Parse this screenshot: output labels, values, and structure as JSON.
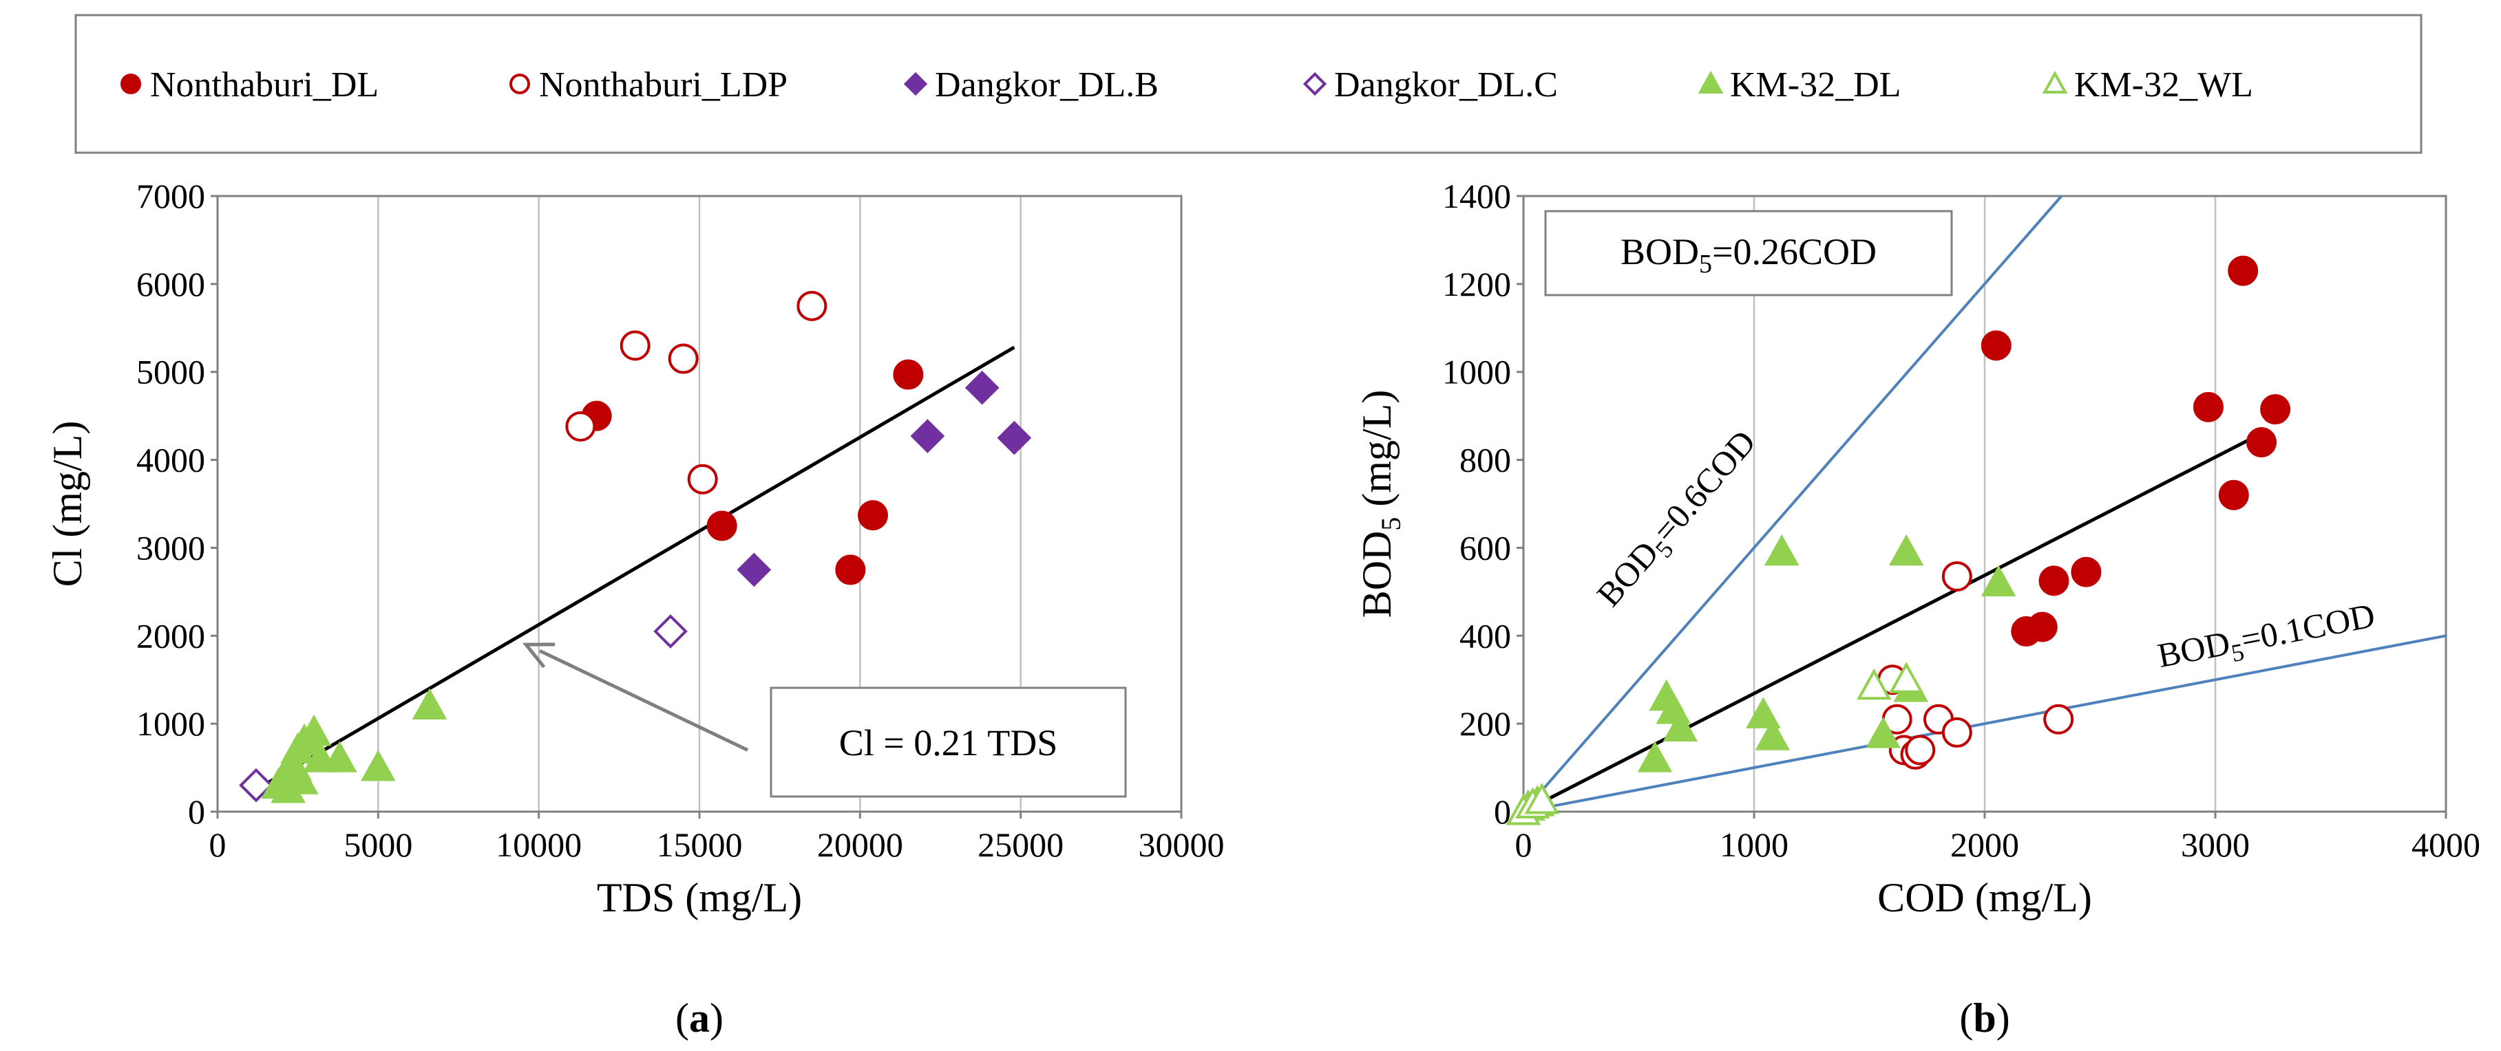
{
  "colors": {
    "nonthaburi": "#C00000",
    "dangkor": "#7030A0",
    "km32": "#92D050",
    "guide": "#4F81BD",
    "fit": "#000000",
    "arrow": "#7F7F7F"
  },
  "legend": [
    {
      "label": "Nonthaburi_DL",
      "marker": "circle",
      "filled": true,
      "color": "#C00000"
    },
    {
      "label": "Nonthaburi_LDP",
      "marker": "circle",
      "filled": false,
      "color": "#C00000"
    },
    {
      "label": "Dangkor_DL.B",
      "marker": "diamond",
      "filled": true,
      "color": "#7030A0"
    },
    {
      "label": "Dangkor_DL.C",
      "marker": "diamond",
      "filled": false,
      "color": "#7030A0"
    },
    {
      "label": "KM-32_DL",
      "marker": "triangle",
      "filled": true,
      "color": "#92D050"
    },
    {
      "label": "KM-32_WL",
      "marker": "triangle",
      "filled": false,
      "color": "#92D050"
    }
  ],
  "chart_data": [
    {
      "type": "scatter",
      "panel_label": "a",
      "xlabel": "TDS (mg/L)",
      "ylabel": "Cl (mg/L)",
      "xlim": [
        0,
        30000
      ],
      "ylim": [
        0,
        7000
      ],
      "xticks": [
        0,
        5000,
        10000,
        15000,
        20000,
        25000,
        30000
      ],
      "yticks": [
        0,
        1000,
        2000,
        3000,
        4000,
        5000,
        6000,
        7000
      ],
      "grid": "vertical",
      "series": [
        {
          "name": "Nonthaburi_DL",
          "points": [
            [
              11800,
              4500
            ],
            [
              15700,
              3250
            ],
            [
              19700,
              2750
            ],
            [
              20400,
              3370
            ],
            [
              21500,
              4970
            ]
          ]
        },
        {
          "name": "Nonthaburi_LDP",
          "points": [
            [
              11300,
              4380
            ],
            [
              13000,
              5300
            ],
            [
              14500,
              5150
            ],
            [
              15100,
              3780
            ],
            [
              18500,
              5750
            ]
          ]
        },
        {
          "name": "Dangkor_DL.B",
          "points": [
            [
              16700,
              2750
            ],
            [
              22100,
              4270
            ],
            [
              23800,
              4820
            ],
            [
              24800,
              4250
            ]
          ]
        },
        {
          "name": "Dangkor_DL.C",
          "points": [
            [
              1200,
              300
            ],
            [
              14100,
              2050
            ]
          ]
        },
        {
          "name": "KM-32_DL",
          "points": [
            [
              1900,
              300
            ],
            [
              2100,
              400
            ],
            [
              2300,
              550
            ],
            [
              2500,
              700
            ],
            [
              2700,
              800
            ],
            [
              2400,
              500
            ],
            [
              3000,
              900
            ],
            [
              3200,
              600
            ],
            [
              2600,
              350
            ],
            [
              3800,
              600
            ],
            [
              5000,
              500
            ],
            [
              6600,
              1200
            ],
            [
              2200,
              250
            ]
          ]
        },
        {
          "name": "KM-32_WL",
          "points": []
        }
      ],
      "fit_line": {
        "x": [
          1200,
          24800
        ],
        "y": [
          250,
          5280
        ]
      },
      "annotation": {
        "text": "Cl = 0.21 TDS",
        "arrow_to": [
          9600,
          1900
        ],
        "arrow_from": [
          16500,
          700
        ]
      }
    },
    {
      "type": "scatter",
      "panel_label": "b",
      "xlabel": "COD (mg/L)",
      "ylabel_main": "BOD",
      "ylabel_sub": "5",
      "ylabel_tail": " (mg/L)",
      "xlim": [
        0,
        4000
      ],
      "ylim": [
        0,
        1400
      ],
      "xticks": [
        0,
        1000,
        2000,
        3000,
        4000
      ],
      "yticks": [
        0,
        200,
        400,
        600,
        800,
        1000,
        1200,
        1400
      ],
      "grid": "vertical",
      "series": [
        {
          "name": "Nonthaburi_DL",
          "points": [
            [
              2050,
              1060
            ],
            [
              2180,
              410
            ],
            [
              2250,
              420
            ],
            [
              2300,
              525
            ],
            [
              2440,
              545
            ],
            [
              2970,
              920
            ],
            [
              3080,
              720
            ],
            [
              3120,
              1230
            ],
            [
              3200,
              840
            ],
            [
              3260,
              915
            ]
          ]
        },
        {
          "name": "Nonthaburi_LDP",
          "points": [
            [
              1600,
              300
            ],
            [
              1620,
              210
            ],
            [
              1650,
              140
            ],
            [
              1700,
              130
            ],
            [
              1800,
              210
            ],
            [
              1880,
              180
            ],
            [
              1880,
              535
            ],
            [
              2320,
              210
            ],
            [
              1720,
              140
            ]
          ]
        },
        {
          "name": "Dangkor_DL.B",
          "points": []
        },
        {
          "name": "Dangkor_DL.C",
          "points": []
        },
        {
          "name": "KM-32_DL",
          "points": [
            [
              20,
              10
            ],
            [
              60,
              20
            ],
            [
              570,
              120
            ],
            [
              620,
              260
            ],
            [
              650,
              230
            ],
            [
              680,
              190
            ],
            [
              1040,
              220
            ],
            [
              1080,
              170
            ],
            [
              1120,
              590
            ],
            [
              1560,
              175
            ],
            [
              1660,
              590
            ],
            [
              1680,
              280
            ],
            [
              2060,
              520
            ]
          ]
        },
        {
          "name": "KM-32_WL",
          "points": [
            [
              0,
              0
            ],
            [
              40,
              15
            ],
            [
              80,
              25
            ],
            [
              1520,
              285
            ],
            [
              1660,
              300
            ]
          ]
        }
      ],
      "fit_line": {
        "x": [
          0,
          3200
        ],
        "y": [
          0,
          860
        ]
      },
      "guide_lines": [
        {
          "label_main": "BOD",
          "label_sub": "5",
          "label_tail": "=0.6COD",
          "x": [
            0,
            2333
          ],
          "y": [
            0,
            1400
          ]
        },
        {
          "label_main": "BOD",
          "label_sub": "5",
          "label_tail": "=0.1COD",
          "x": [
            0,
            4000
          ],
          "y": [
            0,
            400
          ]
        }
      ],
      "annotation_main": "BOD",
      "annotation_sub": "5",
      "annotation_tail": "=0.26COD"
    }
  ]
}
